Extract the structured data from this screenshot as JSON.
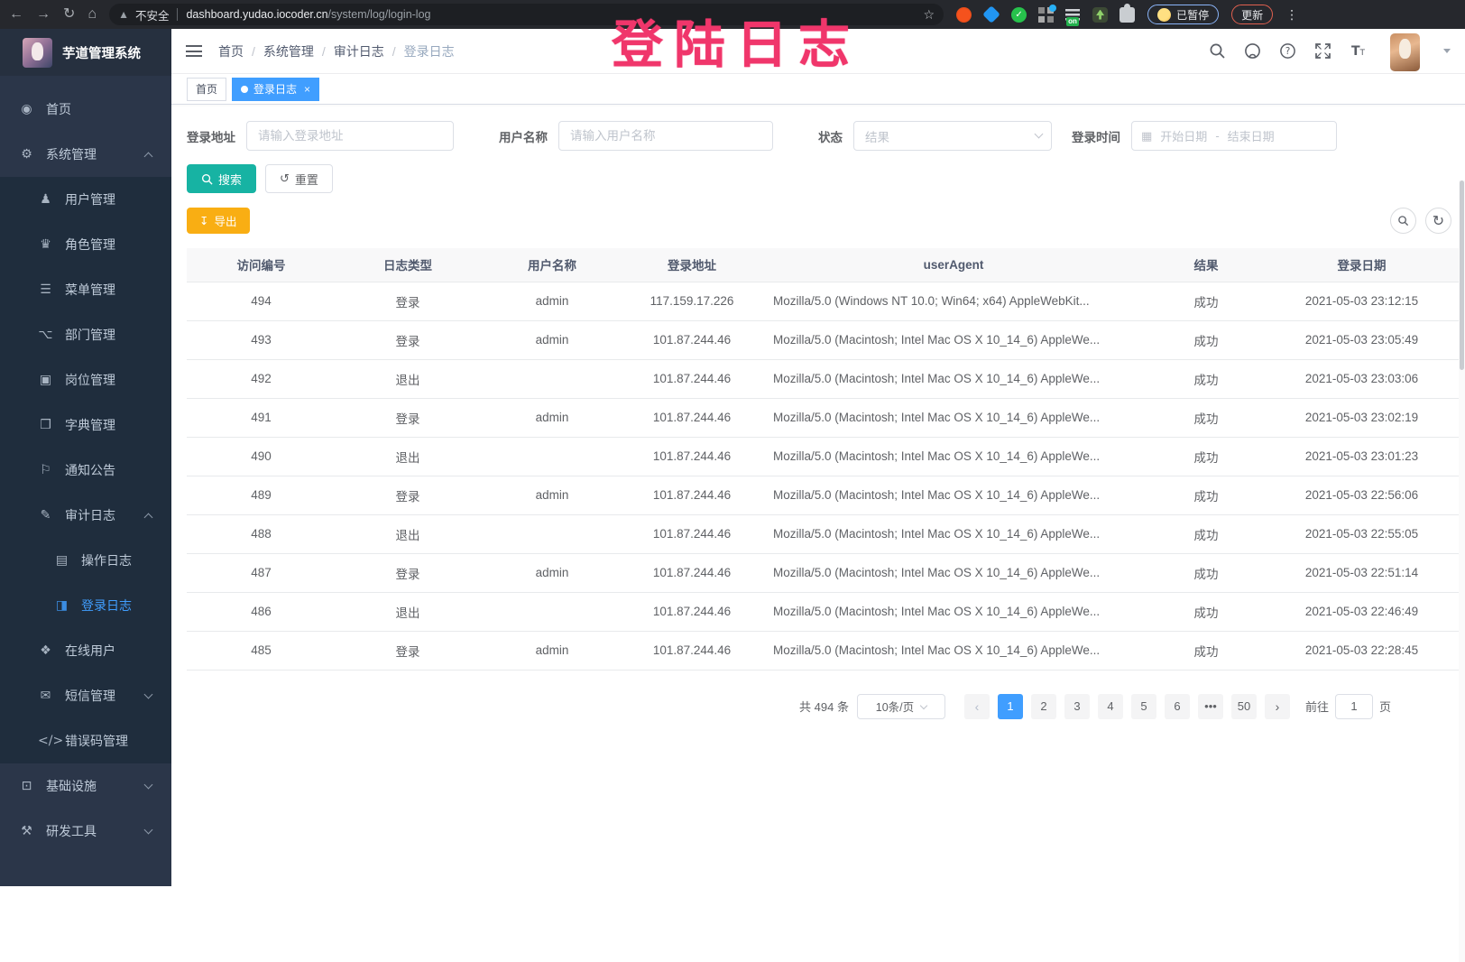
{
  "colors": {
    "accent": "#409eff",
    "teal": "#17b3a3",
    "warning": "#f9ae13",
    "annotation": "#f0366b",
    "sidebar_bg": "#2b3649",
    "submenu_bg": "#1f2d3d"
  },
  "annotation": {
    "text": "登陆日志"
  },
  "browser": {
    "security_label": "不安全",
    "url_domain": "dashboard.yudao.iocoder.cn",
    "url_path": "/system/log/login-log",
    "profile_label": "已暂停",
    "update_label": "更新"
  },
  "sidebar": {
    "title": "芋道管理系统",
    "items": [
      {
        "name": "home",
        "icon": "dashboard-icon",
        "label": "首页",
        "level": 1
      },
      {
        "name": "system-mgmt",
        "icon": "gear-icon",
        "label": "系统管理",
        "level": 1,
        "arrow": "up"
      },
      {
        "name": "user-mgmt",
        "icon": "user-icon",
        "label": "用户管理",
        "level": 2
      },
      {
        "name": "role-mgmt",
        "icon": "role-icon",
        "label": "角色管理",
        "level": 2
      },
      {
        "name": "menu-mgmt",
        "icon": "menu-icon",
        "label": "菜单管理",
        "level": 2
      },
      {
        "name": "dept-mgmt",
        "icon": "tree-icon",
        "label": "部门管理",
        "level": 2
      },
      {
        "name": "post-mgmt",
        "icon": "post-icon",
        "label": "岗位管理",
        "level": 2
      },
      {
        "name": "dict-mgmt",
        "icon": "dict-icon",
        "label": "字典管理",
        "level": 2
      },
      {
        "name": "notice-mgmt",
        "icon": "megaphone-icon",
        "label": "通知公告",
        "level": 2
      },
      {
        "name": "audit-log",
        "icon": "edit-icon",
        "label": "审计日志",
        "level": 2,
        "arrow": "up"
      },
      {
        "name": "operate-log",
        "icon": "doc-icon",
        "label": "操作日志",
        "level": 3
      },
      {
        "name": "login-log",
        "icon": "loginlog-icon",
        "label": "登录日志",
        "level": 3,
        "active": true
      },
      {
        "name": "online-users",
        "icon": "online-icon",
        "label": "在线用户",
        "level": 2
      },
      {
        "name": "sms-mgmt",
        "icon": "sms-icon",
        "label": "短信管理",
        "level": 2,
        "arrow": "down"
      },
      {
        "name": "errorcode-mgmt",
        "icon": "code-icon",
        "label": "错误码管理",
        "level": 2
      },
      {
        "name": "infrastructure",
        "icon": "infra-icon",
        "label": "基础设施",
        "level": 1,
        "arrow": "down"
      },
      {
        "name": "dev-tools",
        "icon": "tools-icon",
        "label": "研发工具",
        "level": 1,
        "arrow": "down"
      }
    ]
  },
  "breadcrumb": [
    "首页",
    "系统管理",
    "审计日志",
    "登录日志"
  ],
  "tabs": [
    {
      "label": "首页",
      "active": false
    },
    {
      "label": "登录日志",
      "active": true
    }
  ],
  "filters": {
    "login_address_label": "登录地址",
    "login_address_placeholder": "请输入登录地址",
    "username_label": "用户名称",
    "username_placeholder": "请输入用户名称",
    "status_label": "状态",
    "status_placeholder": "结果",
    "login_time_label": "登录时间",
    "date_start_placeholder": "开始日期",
    "date_separator": "-",
    "date_end_placeholder": "结束日期"
  },
  "actions": {
    "search": "搜索",
    "reset": "重置",
    "export": "导出"
  },
  "table": {
    "columns": [
      "访问编号",
      "日志类型",
      "用户名称",
      "登录地址",
      "userAgent",
      "结果",
      "登录日期"
    ],
    "rows": [
      [
        "494",
        "登录",
        "admin",
        "117.159.17.226",
        "Mozilla/5.0 (Windows NT 10.0; Win64; x64) AppleWebKit...",
        "成功",
        "2021-05-03 23:12:15"
      ],
      [
        "493",
        "登录",
        "admin",
        "101.87.244.46",
        "Mozilla/5.0 (Macintosh; Intel Mac OS X 10_14_6) AppleWe...",
        "成功",
        "2021-05-03 23:05:49"
      ],
      [
        "492",
        "退出",
        "",
        "101.87.244.46",
        "Mozilla/5.0 (Macintosh; Intel Mac OS X 10_14_6) AppleWe...",
        "成功",
        "2021-05-03 23:03:06"
      ],
      [
        "491",
        "登录",
        "admin",
        "101.87.244.46",
        "Mozilla/5.0 (Macintosh; Intel Mac OS X 10_14_6) AppleWe...",
        "成功",
        "2021-05-03 23:02:19"
      ],
      [
        "490",
        "退出",
        "",
        "101.87.244.46",
        "Mozilla/5.0 (Macintosh; Intel Mac OS X 10_14_6) AppleWe...",
        "成功",
        "2021-05-03 23:01:23"
      ],
      [
        "489",
        "登录",
        "admin",
        "101.87.244.46",
        "Mozilla/5.0 (Macintosh; Intel Mac OS X 10_14_6) AppleWe...",
        "成功",
        "2021-05-03 22:56:06"
      ],
      [
        "488",
        "退出",
        "",
        "101.87.244.46",
        "Mozilla/5.0 (Macintosh; Intel Mac OS X 10_14_6) AppleWe...",
        "成功",
        "2021-05-03 22:55:05"
      ],
      [
        "487",
        "登录",
        "admin",
        "101.87.244.46",
        "Mozilla/5.0 (Macintosh; Intel Mac OS X 10_14_6) AppleWe...",
        "成功",
        "2021-05-03 22:51:14"
      ],
      [
        "486",
        "退出",
        "",
        "101.87.244.46",
        "Mozilla/5.0 (Macintosh; Intel Mac OS X 10_14_6) AppleWe...",
        "成功",
        "2021-05-03 22:46:49"
      ],
      [
        "485",
        "登录",
        "admin",
        "101.87.244.46",
        "Mozilla/5.0 (Macintosh; Intel Mac OS X 10_14_6) AppleWe...",
        "成功",
        "2021-05-03 22:28:45"
      ]
    ]
  },
  "pagination": {
    "total": "共 494 条",
    "page_size": "10条/页",
    "pages": [
      "1",
      "2",
      "3",
      "4",
      "5",
      "6",
      "•••",
      "50"
    ],
    "active_page": "1",
    "goto_label": "前往",
    "goto_value": "1",
    "goto_suffix": "页"
  }
}
